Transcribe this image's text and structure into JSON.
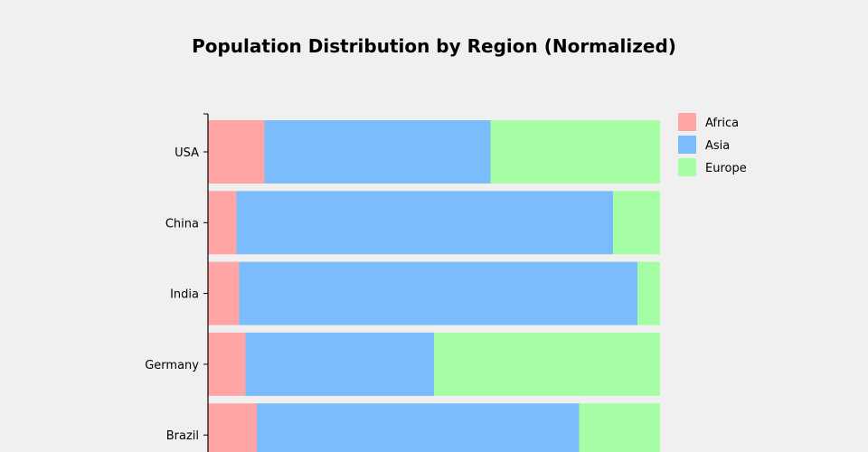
{
  "chart_data": {
    "type": "bar",
    "orientation": "horizontal",
    "stacked": true,
    "normalized": true,
    "title": "Population Distribution by Region (Normalized)",
    "xlabel": "",
    "ylabel": "",
    "xlim": [
      0,
      1
    ],
    "grid": false,
    "legend_position": "top-right",
    "categories": [
      "USA",
      "China",
      "India",
      "Germany",
      "Brazil"
    ],
    "series": [
      {
        "name": "Africa",
        "color": "#ffa5a5",
        "values": [
          0.125,
          0.063,
          0.069,
          0.083,
          0.108
        ]
      },
      {
        "name": "Asia",
        "color": "#7bbcfc",
        "values": [
          0.5,
          0.833,
          0.881,
          0.417,
          0.713
        ]
      },
      {
        "name": "Europe",
        "color": "#a6fea4",
        "values": [
          0.375,
          0.104,
          0.05,
          0.5,
          0.179
        ]
      }
    ]
  }
}
